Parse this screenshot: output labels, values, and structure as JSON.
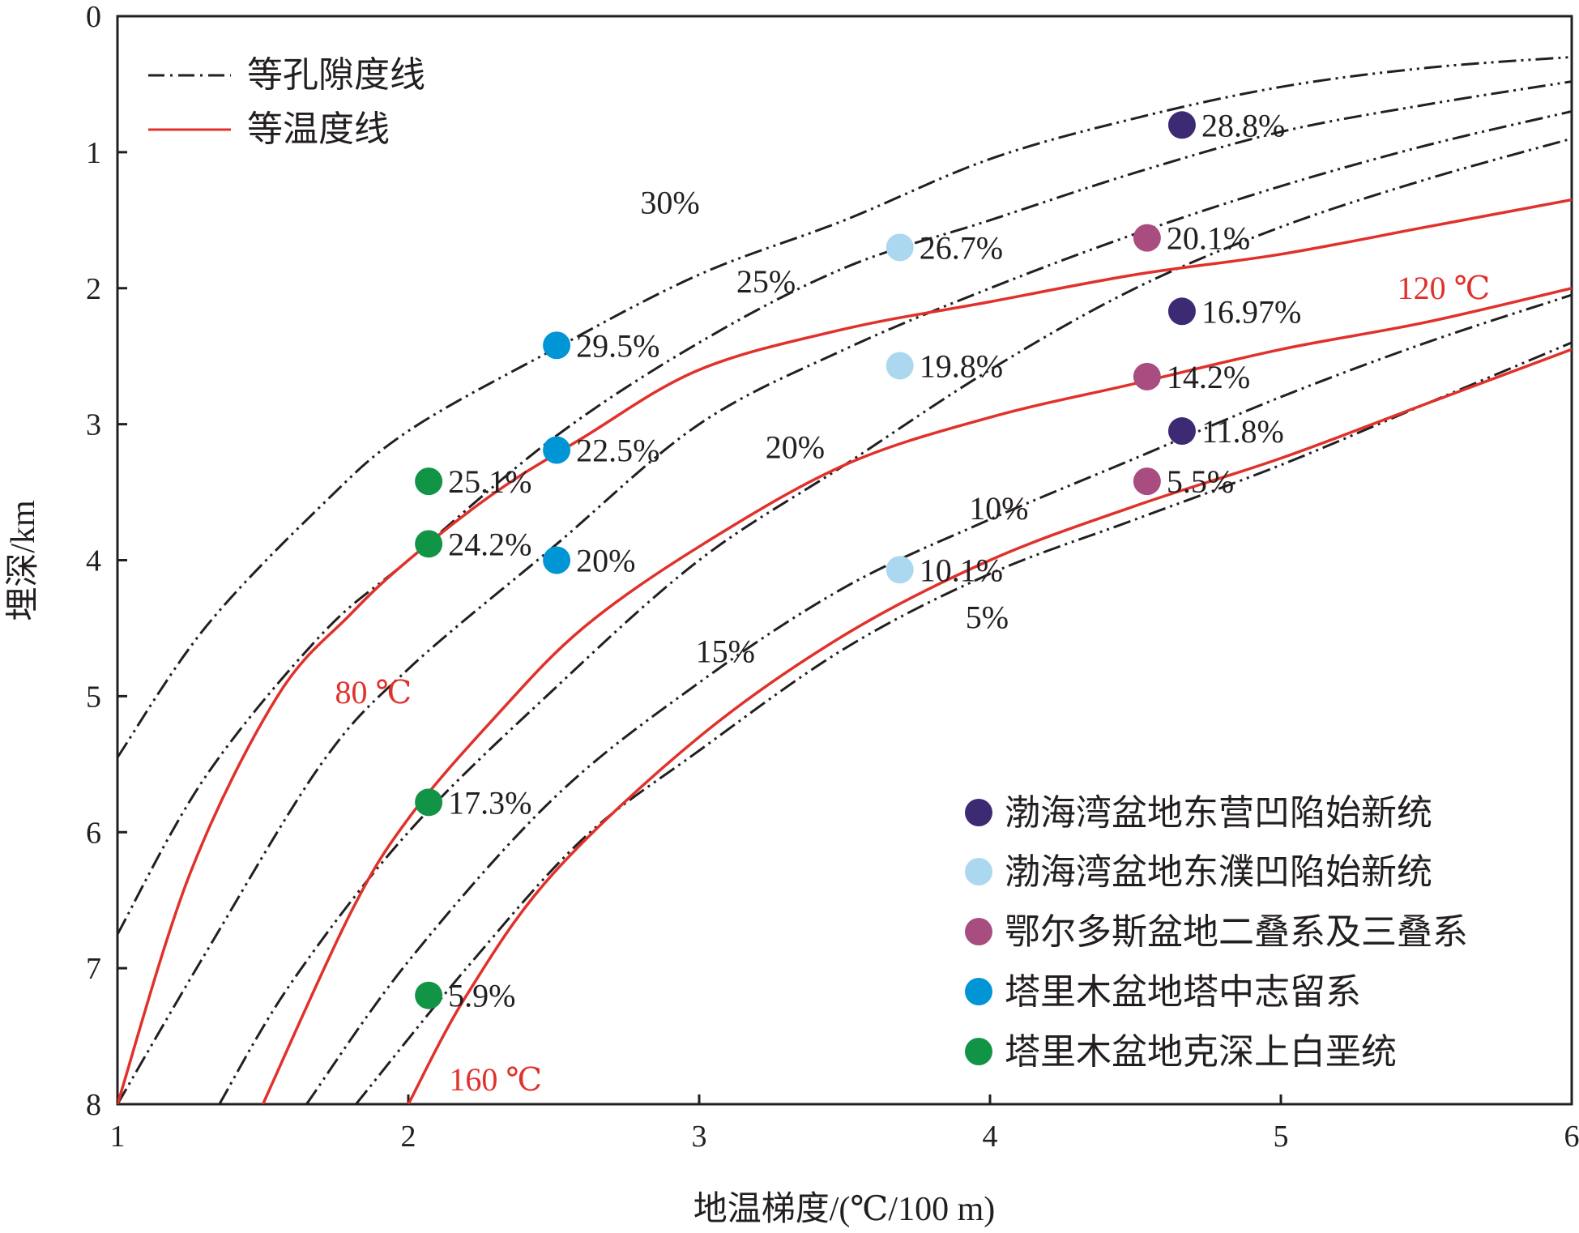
{
  "chart_data": {
    "type": "line",
    "xlabel": "地温梯度/(℃/100 m)",
    "ylabel": "埋深/km",
    "xlim": [
      1,
      6
    ],
    "ylim": [
      0,
      8
    ],
    "y_inverted": true,
    "x_ticks": [
      "1",
      "2",
      "3",
      "4",
      "5",
      "6"
    ],
    "y_ticks": [
      "0",
      "1",
      "2",
      "3",
      "4",
      "5",
      "6",
      "7",
      "8"
    ],
    "line_legend": [
      {
        "label": "等孔隙度线",
        "style": "dash-dot",
        "color": "#231f20"
      },
      {
        "label": "等温度线",
        "style": "solid",
        "color": "#e0312b"
      }
    ],
    "isotherms": [
      {
        "label": "80 ℃",
        "points": [
          [
            1.0,
            8.0
          ],
          [
            1.25,
            6.3
          ],
          [
            1.55,
            5.0
          ],
          [
            1.8,
            4.4
          ],
          [
            2.0,
            4.0
          ],
          [
            2.3,
            3.5
          ],
          [
            2.6,
            3.1
          ],
          [
            3.0,
            2.6
          ],
          [
            3.5,
            2.3
          ],
          [
            4.0,
            2.1
          ],
          [
            4.5,
            1.9
          ],
          [
            5.0,
            1.75
          ],
          [
            5.5,
            1.55
          ],
          [
            6.0,
            1.35
          ]
        ]
      },
      {
        "label": "120 ℃",
        "points": [
          [
            1.5,
            8.0
          ],
          [
            1.8,
            6.6
          ],
          [
            2.0,
            5.9
          ],
          [
            2.3,
            5.15
          ],
          [
            2.6,
            4.5
          ],
          [
            3.0,
            3.9
          ],
          [
            3.5,
            3.3
          ],
          [
            4.0,
            2.95
          ],
          [
            4.5,
            2.7
          ],
          [
            5.0,
            2.45
          ],
          [
            5.5,
            2.25
          ],
          [
            6.0,
            2.0
          ]
        ]
      },
      {
        "label": "160 ℃",
        "points": [
          [
            2.0,
            8.0
          ],
          [
            2.2,
            7.2
          ],
          [
            2.5,
            6.3
          ],
          [
            3.0,
            5.3
          ],
          [
            3.5,
            4.55
          ],
          [
            4.0,
            4.0
          ],
          [
            4.5,
            3.6
          ],
          [
            5.0,
            3.25
          ],
          [
            5.5,
            2.85
          ],
          [
            6.0,
            2.45
          ]
        ]
      }
    ],
    "iso_porosity": [
      {
        "label": "30%",
        "points": [
          [
            1.0,
            5.45
          ],
          [
            1.3,
            4.5
          ],
          [
            1.7,
            3.6
          ],
          [
            2.0,
            3.05
          ],
          [
            2.5,
            2.45
          ],
          [
            3.0,
            1.9
          ],
          [
            3.5,
            1.5
          ],
          [
            4.0,
            1.05
          ],
          [
            4.5,
            0.75
          ],
          [
            5.0,
            0.52
          ],
          [
            5.5,
            0.38
          ],
          [
            6.0,
            0.3
          ]
        ]
      },
      {
        "label": "25%",
        "points": [
          [
            1.0,
            6.75
          ],
          [
            1.3,
            5.6
          ],
          [
            1.7,
            4.55
          ],
          [
            2.0,
            4.0
          ],
          [
            2.5,
            3.1
          ],
          [
            3.0,
            2.4
          ],
          [
            3.5,
            1.85
          ],
          [
            4.0,
            1.5
          ],
          [
            4.5,
            1.15
          ],
          [
            5.0,
            0.85
          ],
          [
            5.5,
            0.65
          ],
          [
            6.0,
            0.48
          ]
        ]
      },
      {
        "label": "20%",
        "points": [
          [
            1.0,
            8.0
          ],
          [
            1.3,
            6.9
          ],
          [
            1.7,
            5.5
          ],
          [
            2.0,
            4.8
          ],
          [
            2.5,
            3.9
          ],
          [
            3.0,
            3.0
          ],
          [
            3.5,
            2.45
          ],
          [
            4.0,
            2.0
          ],
          [
            4.5,
            1.6
          ],
          [
            5.0,
            1.25
          ],
          [
            5.5,
            0.95
          ],
          [
            6.0,
            0.7
          ]
        ]
      },
      {
        "label": "15%",
        "points": [
          [
            1.35,
            8.0
          ],
          [
            1.6,
            7.1
          ],
          [
            2.0,
            6.0
          ],
          [
            2.5,
            4.95
          ],
          [
            3.0,
            4.0
          ],
          [
            3.5,
            3.3
          ],
          [
            4.0,
            2.6
          ],
          [
            4.5,
            2.0
          ],
          [
            5.0,
            1.55
          ],
          [
            5.5,
            1.2
          ],
          [
            6.0,
            0.9
          ]
        ]
      },
      {
        "label": "10%",
        "points": [
          [
            1.65,
            8.0
          ],
          [
            2.0,
            6.95
          ],
          [
            2.5,
            5.75
          ],
          [
            3.0,
            4.9
          ],
          [
            3.5,
            4.2
          ],
          [
            4.0,
            3.7
          ],
          [
            4.5,
            3.25
          ],
          [
            5.0,
            2.8
          ],
          [
            5.5,
            2.4
          ],
          [
            6.0,
            2.05
          ]
        ]
      },
      {
        "label": "5%",
        "points": [
          [
            1.82,
            8.0
          ],
          [
            2.2,
            7.0
          ],
          [
            2.6,
            6.05
          ],
          [
            3.0,
            5.4
          ],
          [
            3.5,
            4.65
          ],
          [
            4.0,
            4.1
          ],
          [
            4.5,
            3.7
          ],
          [
            5.0,
            3.3
          ],
          [
            5.5,
            2.85
          ],
          [
            6.0,
            2.4
          ]
        ]
      }
    ],
    "iso_porosity_labels": [
      {
        "text": "30%",
        "x": 2.9,
        "y": 1.45
      },
      {
        "text": "25%",
        "x": 3.23,
        "y": 2.03
      },
      {
        "text": "20%",
        "x": 3.33,
        "y": 3.25
      },
      {
        "text": "15%",
        "x": 3.09,
        "y": 4.75
      },
      {
        "text": "10%",
        "x": 4.03,
        "y": 3.7
      },
      {
        "text": "5%",
        "x": 3.99,
        "y": 4.5
      }
    ],
    "isotherm_labels": [
      {
        "text": "80 ℃",
        "x": 1.88,
        "y": 5.05
      },
      {
        "text": "120 ℃",
        "x": 5.56,
        "y": 2.08
      },
      {
        "text": "160 ℃",
        "x": 2.3,
        "y": 7.9
      }
    ],
    "point_series": [
      {
        "name": "渤海湾盆地东营凹陷始新统",
        "color": "#3c2a73",
        "points": [
          {
            "x": 4.66,
            "y": 0.8,
            "label": "28.8%"
          },
          {
            "x": 4.66,
            "y": 2.17,
            "label": "16.97%"
          },
          {
            "x": 4.66,
            "y": 3.05,
            "label": "11.8%"
          }
        ]
      },
      {
        "name": "渤海湾盆地东濮凹陷始新统",
        "color": "#abd8ef",
        "points": [
          {
            "x": 3.69,
            "y": 1.7,
            "label": "26.7%"
          },
          {
            "x": 3.69,
            "y": 2.57,
            "label": "19.8%"
          },
          {
            "x": 3.69,
            "y": 4.07,
            "label": "10.1%"
          }
        ]
      },
      {
        "name": "鄂尔多斯盆地二叠系及三叠系",
        "color": "#a94d80",
        "points": [
          {
            "x": 4.54,
            "y": 1.63,
            "label": "20.1%"
          },
          {
            "x": 4.54,
            "y": 2.65,
            "label": "14.2%"
          },
          {
            "x": 4.54,
            "y": 3.42,
            "label": "5.5%"
          }
        ]
      },
      {
        "name": "塔里木盆地塔中志留系",
        "color": "#0096d6",
        "points": [
          {
            "x": 2.51,
            "y": 2.42,
            "label": "29.5%"
          },
          {
            "x": 2.51,
            "y": 3.19,
            "label": "22.5%"
          },
          {
            "x": 2.51,
            "y": 4.0,
            "label": "20%"
          }
        ]
      },
      {
        "name": "塔里木盆地克深上白垩统",
        "color": "#129446",
        "points": [
          {
            "x": 2.07,
            "y": 3.42,
            "label": "25.1%"
          },
          {
            "x": 2.07,
            "y": 3.88,
            "label": "24.2%"
          },
          {
            "x": 2.07,
            "y": 5.78,
            "label": "17.3%"
          },
          {
            "x": 2.07,
            "y": 7.2,
            "label": "5.9%"
          }
        ]
      }
    ],
    "legend_placement": "top-left (line styles), bottom-right (point series)",
    "grid": false
  }
}
